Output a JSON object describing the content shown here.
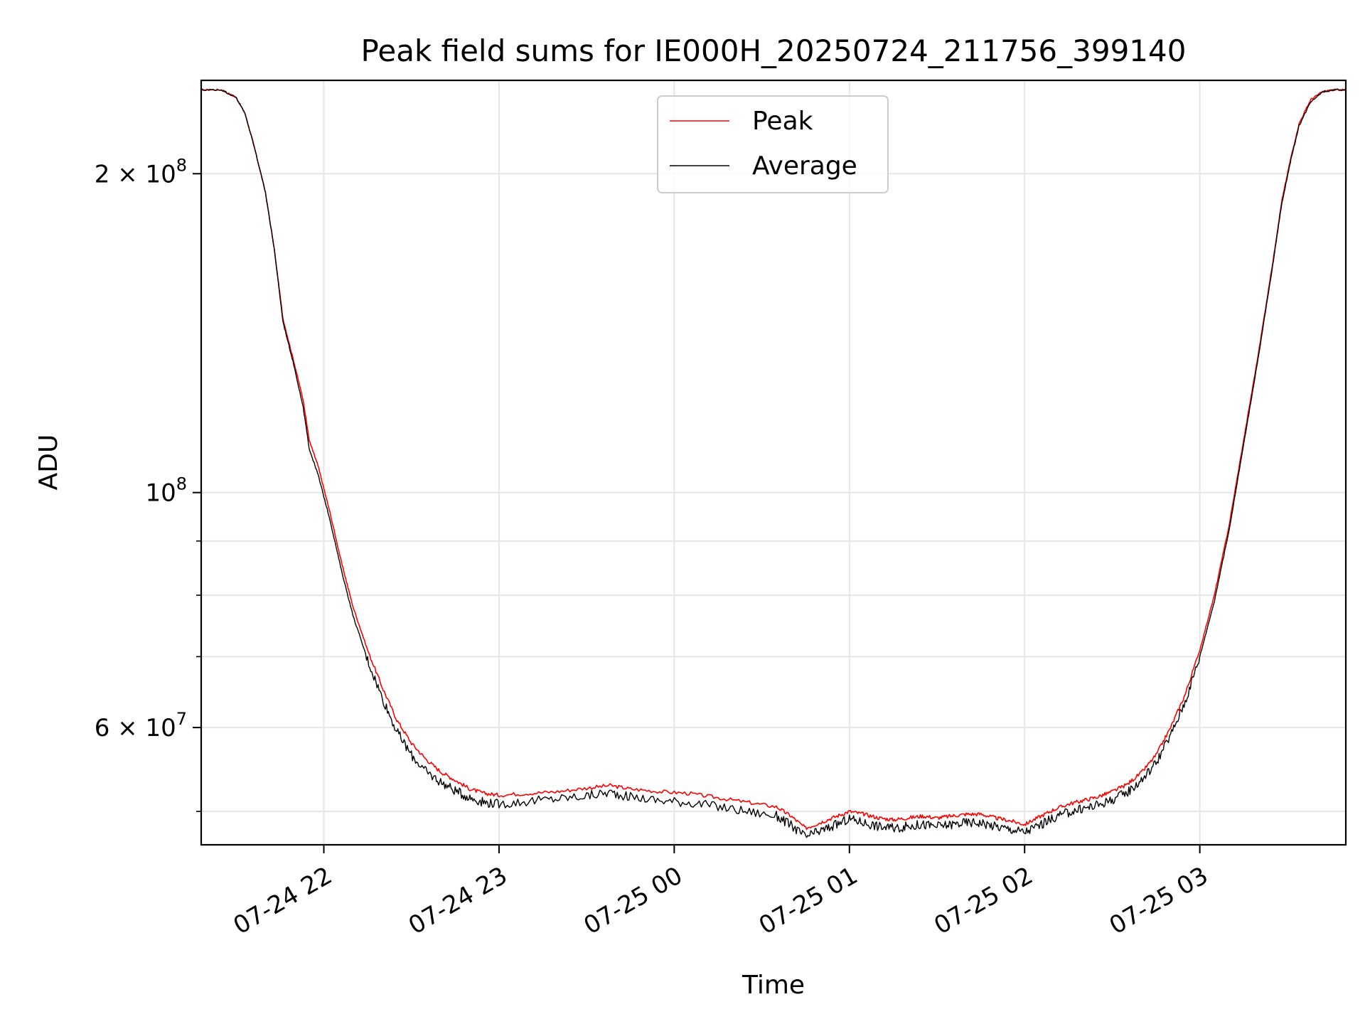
{
  "chart_data": {
    "type": "line",
    "title": "Peak field sums for IE000H_20250724_211756_399140",
    "xlabel": "Time",
    "ylabel": "ADU",
    "yscale": "log",
    "xlim": [
      "2025-07-24 21:18",
      "2025-07-25 03:50"
    ],
    "ylim": [
      46500000,
      245000000
    ],
    "grid": true,
    "legend_position": "top-center",
    "x_ticks": [
      {
        "label": "07-24 22",
        "value": "2025-07-24 22:00"
      },
      {
        "label": "07-24 23",
        "value": "2025-07-24 23:00"
      },
      {
        "label": "07-25 00",
        "value": "2025-07-25 00:00"
      },
      {
        "label": "07-25 01",
        "value": "2025-07-25 01:00"
      },
      {
        "label": "07-25 02",
        "value": "2025-07-25 02:00"
      },
      {
        "label": "07-25 03",
        "value": "2025-07-25 03:00"
      }
    ],
    "y_ticks_major": [
      {
        "base": "2",
        "exp": "8",
        "value": 200000000
      },
      {
        "base": "",
        "exp": "8",
        "value": 100000000
      },
      {
        "base": "6",
        "exp": "7",
        "value": 60000000
      }
    ],
    "y_ticks_minor": [
      50000000,
      70000000,
      80000000,
      90000000
    ],
    "series": [
      {
        "name": "Peak",
        "color": "#ff0000",
        "x": [
          "2025-07-24 21:18",
          "2025-07-24 21:25",
          "2025-07-24 21:30",
          "2025-07-24 21:33",
          "2025-07-24 21:36",
          "2025-07-24 21:40",
          "2025-07-24 21:43",
          "2025-07-24 21:46",
          "2025-07-24 21:50",
          "2025-07-24 21:53",
          "2025-07-24 21:55",
          "2025-07-24 21:58",
          "2025-07-24 22:02",
          "2025-07-24 22:06",
          "2025-07-24 22:10",
          "2025-07-24 22:15",
          "2025-07-24 22:20",
          "2025-07-24 22:25",
          "2025-07-24 22:30",
          "2025-07-24 22:35",
          "2025-07-24 22:40",
          "2025-07-24 22:45",
          "2025-07-24 22:50",
          "2025-07-24 22:55",
          "2025-07-24 23:00",
          "2025-07-24 23:10",
          "2025-07-24 23:20",
          "2025-07-24 23:30",
          "2025-07-24 23:38",
          "2025-07-24 23:45",
          "2025-07-24 23:55",
          "2025-07-25 00:05",
          "2025-07-25 00:15",
          "2025-07-25 00:25",
          "2025-07-25 00:35",
          "2025-07-25 00:40",
          "2025-07-25 00:45",
          "2025-07-25 00:50",
          "2025-07-25 00:55",
          "2025-07-25 01:00",
          "2025-07-25 01:05",
          "2025-07-25 01:10",
          "2025-07-25 01:15",
          "2025-07-25 01:20",
          "2025-07-25 01:25",
          "2025-07-25 01:30",
          "2025-07-25 01:35",
          "2025-07-25 01:40",
          "2025-07-25 01:45",
          "2025-07-25 01:50",
          "2025-07-25 01:55",
          "2025-07-25 02:00",
          "2025-07-25 02:05",
          "2025-07-25 02:10",
          "2025-07-25 02:15",
          "2025-07-25 02:20",
          "2025-07-25 02:25",
          "2025-07-25 02:30",
          "2025-07-25 02:35",
          "2025-07-25 02:40",
          "2025-07-25 02:45",
          "2025-07-25 02:50",
          "2025-07-25 02:55",
          "2025-07-25 03:00",
          "2025-07-25 03:05",
          "2025-07-25 03:10",
          "2025-07-25 03:15",
          "2025-07-25 03:20",
          "2025-07-25 03:25",
          "2025-07-25 03:28",
          "2025-07-25 03:31",
          "2025-07-25 03:34",
          "2025-07-25 03:38",
          "2025-07-25 03:42",
          "2025-07-25 03:46",
          "2025-07-25 03:50"
        ],
        "y": [
          240000000,
          240000000,
          236000000,
          228000000,
          213000000,
          192000000,
          170000000,
          146000000,
          132000000,
          122000000,
          112000000,
          106000000,
          96000000,
          86000000,
          78000000,
          71000000,
          65500000,
          61000000,
          58000000,
          56000000,
          54500000,
          53500000,
          52500000,
          52000000,
          51800000,
          52000000,
          52200000,
          52600000,
          52900000,
          52500000,
          52200000,
          52000000,
          51500000,
          51000000,
          50500000,
          49500000,
          48200000,
          48800000,
          49400000,
          50000000,
          49700000,
          49300000,
          49100000,
          49300000,
          49500000,
          49300000,
          49500000,
          49700000,
          49700000,
          49300000,
          49000000,
          48600000,
          49400000,
          50200000,
          50800000,
          51200000,
          51600000,
          52200000,
          53000000,
          54400000,
          56500000,
          60000000,
          64500000,
          71000000,
          80000000,
          93000000,
          112000000,
          135000000,
          165000000,
          188000000,
          206000000,
          223000000,
          235000000,
          239000000,
          240000000,
          240000000
        ]
      },
      {
        "name": "Average",
        "color": "#000000",
        "x": [
          "2025-07-24 21:18",
          "2025-07-24 21:25",
          "2025-07-24 21:30",
          "2025-07-24 21:33",
          "2025-07-24 21:36",
          "2025-07-24 21:40",
          "2025-07-24 21:43",
          "2025-07-24 21:46",
          "2025-07-24 21:50",
          "2025-07-24 21:53",
          "2025-07-24 21:55",
          "2025-07-24 21:58",
          "2025-07-24 22:02",
          "2025-07-24 22:06",
          "2025-07-24 22:10",
          "2025-07-24 22:15",
          "2025-07-24 22:20",
          "2025-07-24 22:25",
          "2025-07-24 22:30",
          "2025-07-24 22:35",
          "2025-07-24 22:40",
          "2025-07-24 22:45",
          "2025-07-24 22:50",
          "2025-07-24 22:55",
          "2025-07-24 23:00",
          "2025-07-24 23:10",
          "2025-07-24 23:20",
          "2025-07-24 23:30",
          "2025-07-24 23:38",
          "2025-07-24 23:45",
          "2025-07-24 23:55",
          "2025-07-25 00:05",
          "2025-07-25 00:15",
          "2025-07-25 00:25",
          "2025-07-25 00:35",
          "2025-07-25 00:40",
          "2025-07-25 00:45",
          "2025-07-25 00:50",
          "2025-07-25 00:55",
          "2025-07-25 01:00",
          "2025-07-25 01:05",
          "2025-07-25 01:10",
          "2025-07-25 01:15",
          "2025-07-25 01:20",
          "2025-07-25 01:25",
          "2025-07-25 01:30",
          "2025-07-25 01:35",
          "2025-07-25 01:40",
          "2025-07-25 01:45",
          "2025-07-25 01:50",
          "2025-07-25 01:55",
          "2025-07-25 02:00",
          "2025-07-25 02:05",
          "2025-07-25 02:10",
          "2025-07-25 02:15",
          "2025-07-25 02:20",
          "2025-07-25 02:25",
          "2025-07-25 02:30",
          "2025-07-25 02:35",
          "2025-07-25 02:40",
          "2025-07-25 02:45",
          "2025-07-25 02:50",
          "2025-07-25 02:55",
          "2025-07-25 03:00",
          "2025-07-25 03:05",
          "2025-07-25 03:10",
          "2025-07-25 03:15",
          "2025-07-25 03:20",
          "2025-07-25 03:25",
          "2025-07-25 03:28",
          "2025-07-25 03:31",
          "2025-07-25 03:34",
          "2025-07-25 03:38",
          "2025-07-25 03:42",
          "2025-07-25 03:46",
          "2025-07-25 03:50"
        ],
        "y": [
          240000000,
          240000000,
          236000000,
          228000000,
          213000000,
          192000000,
          170000000,
          145000000,
          131000000,
          120000000,
          110000000,
          104000000,
          94500000,
          84500000,
          76500000,
          69500000,
          64000000,
          59500000,
          56500000,
          54500000,
          53300000,
          52300000,
          51500000,
          51000000,
          50800000,
          51100000,
          51400000,
          51700000,
          52100000,
          51600000,
          51200000,
          51000000,
          50500000,
          50000000,
          49500000,
          48500000,
          47300000,
          47900000,
          48500000,
          49200000,
          48800000,
          48400000,
          48200000,
          48400000,
          48600000,
          48400000,
          48600000,
          48800000,
          48800000,
          48400000,
          48100000,
          47800000,
          48500000,
          49300000,
          49900000,
          50300000,
          50700000,
          51300000,
          52100000,
          53500000,
          55600000,
          59000000,
          63500000,
          70000000,
          79000000,
          92000000,
          111000000,
          134000000,
          164000000,
          187000000,
          205000000,
          222000000,
          234000000,
          239000000,
          240000000,
          240000000
        ]
      }
    ]
  }
}
